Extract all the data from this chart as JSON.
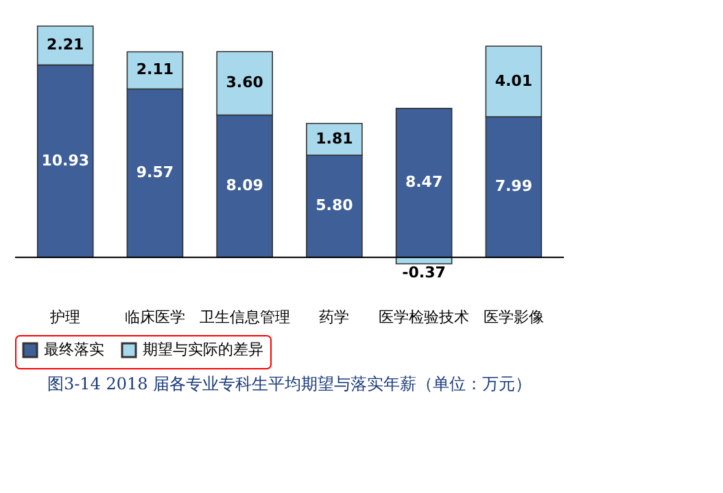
{
  "chart_data": {
    "type": "bar",
    "stacked": true,
    "title": "图3-14 2018 届各专业专科生平均期望与落实年薪（单位：万元）",
    "categories": [
      "护理",
      "临床医学",
      "卫生信息管理",
      "药学",
      "医学检验技术",
      "医学影像"
    ],
    "series": [
      {
        "name": "最终落实",
        "color": "#3e5f97",
        "values": [
          10.93,
          9.57,
          8.09,
          5.8,
          8.47,
          7.99
        ],
        "value_labels": [
          "10.93",
          "9.57",
          "8.09",
          "5.80",
          "8.47",
          "7.99"
        ]
      },
      {
        "name": "期望与实际的差异",
        "color": "#a8d8ec",
        "values": [
          2.21,
          2.11,
          3.6,
          1.81,
          -0.37,
          4.01
        ],
        "value_labels": [
          "2.21",
          "2.11",
          "3.60",
          "1.81",
          "-0.37",
          "4.01"
        ]
      }
    ],
    "tick_labels": "x",
    "legend": "bottom",
    "grid": false
  }
}
